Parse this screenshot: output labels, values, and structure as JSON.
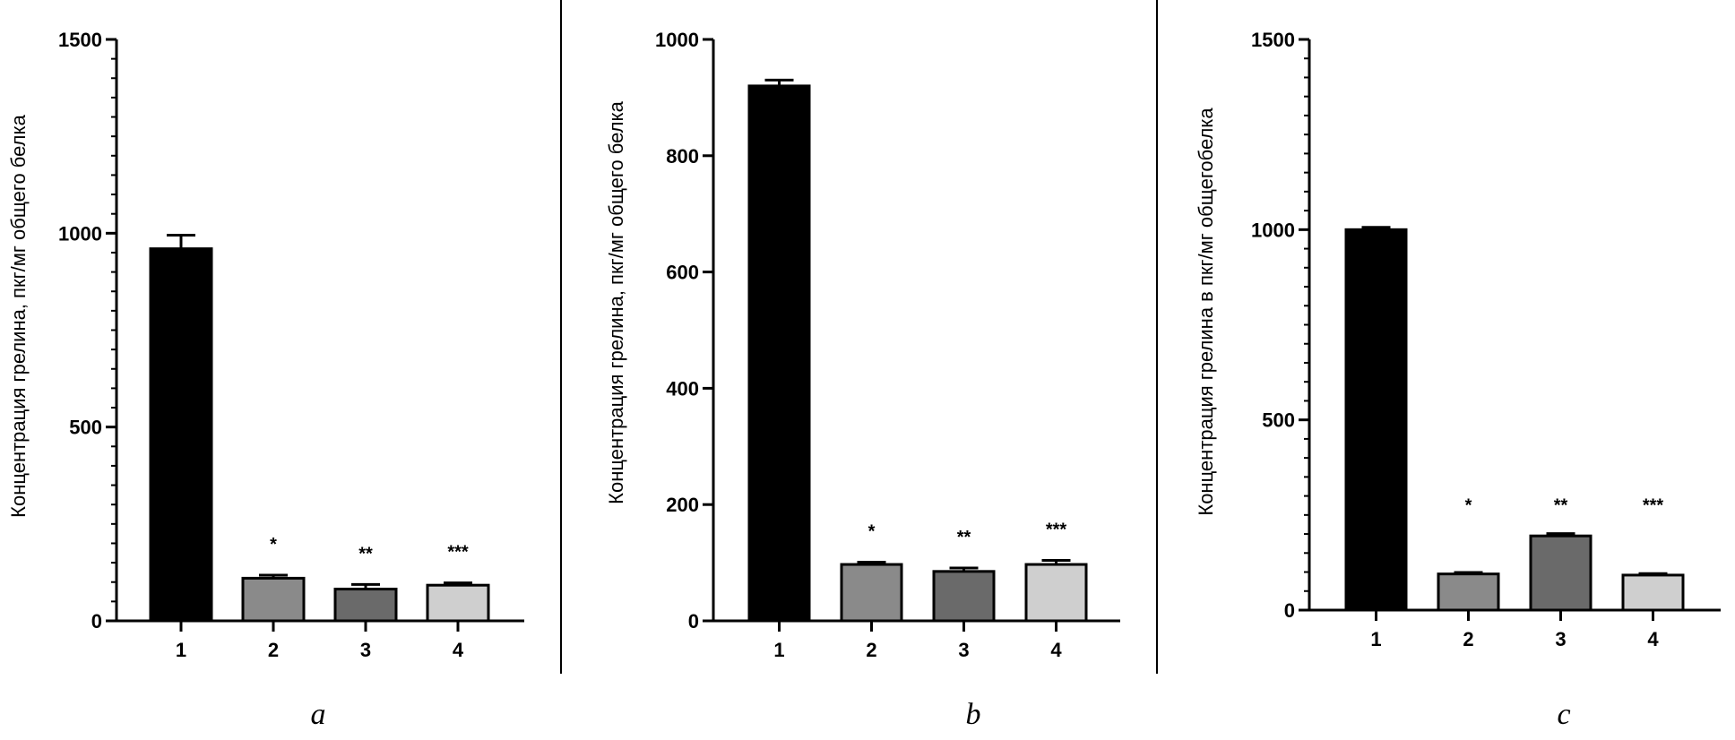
{
  "colors": {
    "bar_fills": [
      "#000000",
      "#8a8a8a",
      "#6a6a6a",
      "#cfcfcf"
    ],
    "bar_stroke": "#000000",
    "axis": "#000000",
    "divider": "#000000"
  },
  "chart_data": [
    {
      "type": "bar",
      "panel_label": "a",
      "ylabel": "Концентрация грелина, пкг/мг общего белка",
      "categories": [
        "1",
        "2",
        "3",
        "4"
      ],
      "values": [
        960,
        110,
        82,
        92
      ],
      "errors": [
        35,
        8,
        12,
        6
      ],
      "significance": [
        "",
        "*",
        "**",
        "***"
      ],
      "ylim": [
        0,
        1500
      ],
      "yticks": [
        0,
        500,
        1000,
        1500
      ],
      "ytick_labels": [
        "0",
        "500",
        "1000",
        "1500"
      ],
      "minor_tick_step": 50,
      "grid": false
    },
    {
      "type": "bar",
      "panel_label": "b",
      "ylabel": "Концентрация грелина, пкг/мг общего белка",
      "categories": [
        "1",
        "2",
        "3",
        "4"
      ],
      "values": [
        920,
        97,
        85,
        97
      ],
      "errors": [
        10,
        4,
        6,
        7
      ],
      "significance": [
        "",
        "*",
        "**",
        "***"
      ],
      "ylim": [
        0,
        1000
      ],
      "yticks": [
        0,
        200,
        400,
        600,
        800,
        1000
      ],
      "ytick_labels": [
        "0",
        "200",
        "400",
        "600",
        "800",
        "1000"
      ],
      "minor_tick_step": 0,
      "grid": false
    },
    {
      "type": "bar",
      "panel_label": "c",
      "ylabel": "Концентрация грелина в пкг/мг общегобелка",
      "categories": [
        "1",
        "2",
        "3",
        "4"
      ],
      "values": [
        1000,
        95,
        195,
        92
      ],
      "errors": [
        6,
        4,
        6,
        4
      ],
      "significance": [
        "",
        "*",
        "**",
        "***"
      ],
      "ylim": [
        0,
        1500
      ],
      "yticks": [
        0,
        500,
        1000,
        1500
      ],
      "ytick_labels": [
        "0",
        "500",
        "1000",
        "1500"
      ],
      "minor_tick_step": 50,
      "grid": false
    }
  ]
}
